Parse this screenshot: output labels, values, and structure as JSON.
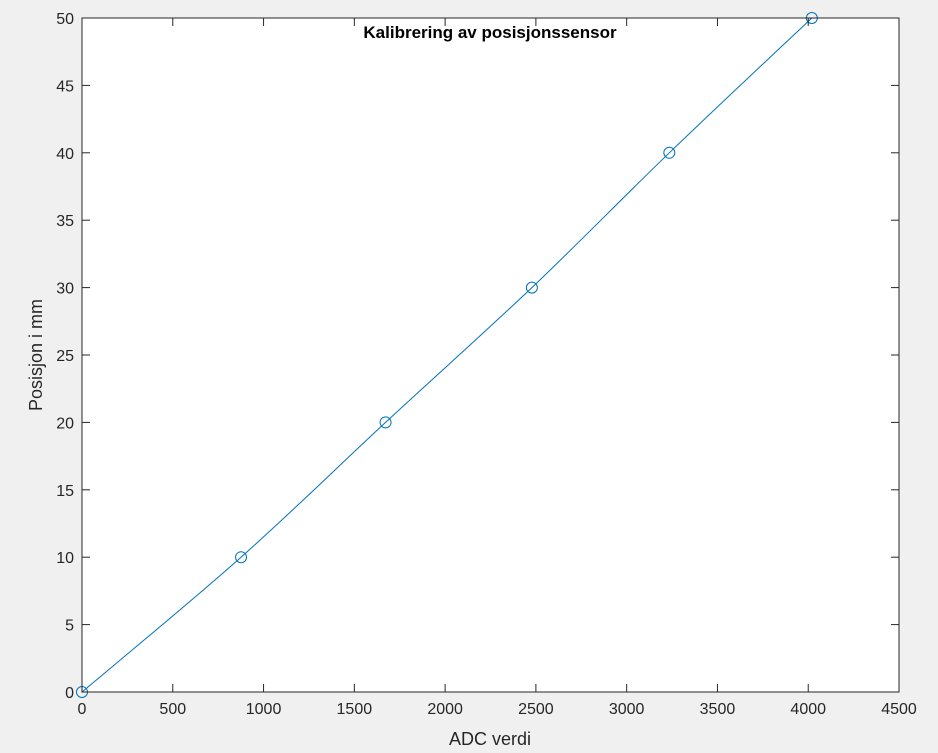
{
  "chart_data": {
    "type": "line",
    "title": "Kalibrering av posisjonssensor",
    "xlabel": "ADC verdi",
    "ylabel": "Posisjon i mm",
    "xlim": [
      0,
      4500
    ],
    "ylim": [
      0,
      50
    ],
    "xticks": [
      0,
      500,
      1000,
      1500,
      2000,
      2500,
      3000,
      3500,
      4000,
      4500
    ],
    "yticks": [
      0,
      5,
      10,
      15,
      20,
      25,
      30,
      35,
      40,
      45,
      50
    ],
    "grid": false,
    "series": [
      {
        "marker": "circle",
        "color": "#0072BD",
        "x": [
          0,
          876,
          1672,
          2478,
          3235,
          4020
        ],
        "y": [
          0,
          10,
          20,
          30,
          40,
          50
        ]
      }
    ]
  }
}
